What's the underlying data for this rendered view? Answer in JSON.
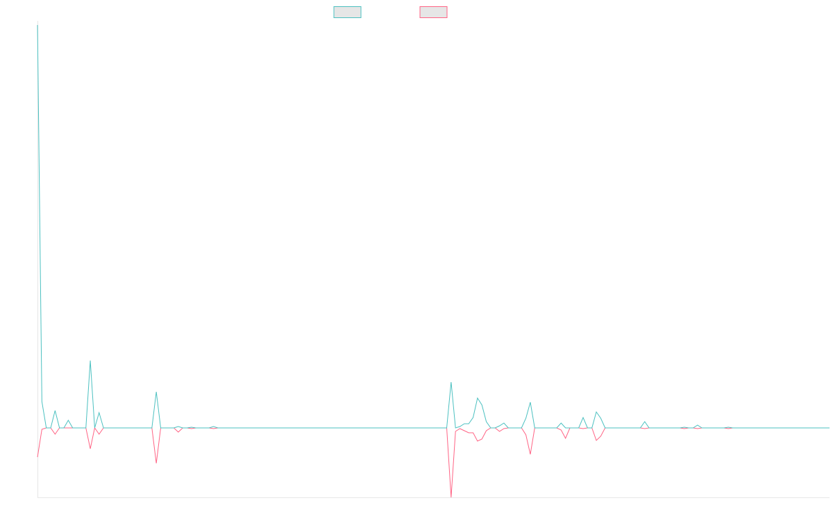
{
  "chart_data": {
    "type": "line",
    "title": "",
    "xlabel": "",
    "ylabel": "",
    "legend_position": "top-center",
    "grid": false,
    "ylim": [
      -100,
      580
    ],
    "x_count": 181,
    "series": [
      {
        "color": "#4bc0c0",
        "points": [
          [
            0,
            580
          ],
          [
            1,
            38
          ],
          [
            2,
            0
          ],
          [
            3,
            0
          ],
          [
            4,
            25
          ],
          [
            5,
            0
          ],
          [
            6,
            0
          ],
          [
            7,
            11
          ],
          [
            8,
            0
          ],
          [
            9,
            0
          ],
          [
            10,
            0
          ],
          [
            11,
            0
          ],
          [
            12,
            97
          ],
          [
            13,
            0
          ],
          [
            14,
            22
          ],
          [
            15,
            0
          ],
          [
            16,
            0
          ],
          [
            17,
            0
          ],
          [
            18,
            0
          ],
          [
            19,
            0
          ],
          [
            20,
            0
          ],
          [
            21,
            0
          ],
          [
            22,
            0
          ],
          [
            23,
            0
          ],
          [
            24,
            0
          ],
          [
            25,
            0
          ],
          [
            26,
            0
          ],
          [
            27,
            52
          ],
          [
            28,
            0
          ],
          [
            29,
            0
          ],
          [
            30,
            0
          ],
          [
            31,
            0
          ],
          [
            32,
            2
          ],
          [
            33,
            0
          ],
          [
            34,
            0
          ],
          [
            35,
            1
          ],
          [
            36,
            0
          ],
          [
            37,
            0
          ],
          [
            38,
            0
          ],
          [
            39,
            0
          ],
          [
            40,
            2
          ],
          [
            41,
            0
          ],
          [
            93,
            0
          ],
          [
            94,
            66
          ],
          [
            95,
            0
          ],
          [
            96,
            2
          ],
          [
            97,
            6
          ],
          [
            98,
            6
          ],
          [
            99,
            15
          ],
          [
            100,
            43
          ],
          [
            101,
            33
          ],
          [
            102,
            9
          ],
          [
            103,
            0
          ],
          [
            104,
            0
          ],
          [
            105,
            3
          ],
          [
            106,
            7
          ],
          [
            107,
            0
          ],
          [
            108,
            0
          ],
          [
            109,
            0
          ],
          [
            110,
            0
          ],
          [
            111,
            14
          ],
          [
            112,
            37
          ],
          [
            113,
            0
          ],
          [
            114,
            0
          ],
          [
            115,
            0
          ],
          [
            116,
            0
          ],
          [
            117,
            0
          ],
          [
            118,
            0
          ],
          [
            119,
            7
          ],
          [
            120,
            0
          ],
          [
            121,
            0
          ],
          [
            122,
            0
          ],
          [
            123,
            0
          ],
          [
            124,
            15
          ],
          [
            125,
            0
          ],
          [
            126,
            0
          ],
          [
            127,
            23
          ],
          [
            128,
            14
          ],
          [
            129,
            0
          ],
          [
            130,
            0
          ],
          [
            131,
            0
          ],
          [
            132,
            0
          ],
          [
            133,
            0
          ],
          [
            134,
            0
          ],
          [
            135,
            0
          ],
          [
            136,
            0
          ],
          [
            137,
            0
          ],
          [
            138,
            9
          ],
          [
            139,
            0
          ],
          [
            140,
            0
          ],
          [
            141,
            0
          ],
          [
            142,
            0
          ],
          [
            143,
            0
          ],
          [
            144,
            0
          ],
          [
            145,
            0
          ],
          [
            146,
            0
          ],
          [
            147,
            1
          ],
          [
            148,
            0
          ],
          [
            149,
            0
          ],
          [
            150,
            4
          ],
          [
            151,
            0
          ],
          [
            152,
            0
          ],
          [
            153,
            0
          ],
          [
            154,
            0
          ],
          [
            155,
            0
          ],
          [
            156,
            0
          ],
          [
            157,
            1
          ],
          [
            158,
            0
          ],
          [
            180,
            0
          ]
        ]
      },
      {
        "color": "#ff6384",
        "points": [
          [
            0,
            -42
          ],
          [
            1,
            -2
          ],
          [
            2,
            0
          ],
          [
            3,
            0
          ],
          [
            4,
            -9
          ],
          [
            5,
            0
          ],
          [
            6,
            0
          ],
          [
            7,
            0
          ],
          [
            8,
            0
          ],
          [
            9,
            0
          ],
          [
            10,
            0
          ],
          [
            11,
            0
          ],
          [
            12,
            -30
          ],
          [
            13,
            0
          ],
          [
            14,
            -9
          ],
          [
            15,
            0
          ],
          [
            16,
            0
          ],
          [
            17,
            0
          ],
          [
            18,
            0
          ],
          [
            19,
            0
          ],
          [
            20,
            0
          ],
          [
            21,
            0
          ],
          [
            22,
            0
          ],
          [
            23,
            0
          ],
          [
            24,
            0
          ],
          [
            25,
            0
          ],
          [
            26,
            0
          ],
          [
            27,
            -51
          ],
          [
            28,
            0
          ],
          [
            29,
            0
          ],
          [
            30,
            0
          ],
          [
            31,
            0
          ],
          [
            32,
            -6
          ],
          [
            33,
            0
          ],
          [
            34,
            0
          ],
          [
            35,
            -1
          ],
          [
            36,
            0
          ],
          [
            37,
            0
          ],
          [
            38,
            0
          ],
          [
            39,
            0
          ],
          [
            40,
            -1
          ],
          [
            41,
            0
          ],
          [
            93,
            0
          ],
          [
            94,
            -100
          ],
          [
            95,
            -5
          ],
          [
            96,
            -1
          ],
          [
            97,
            -4
          ],
          [
            98,
            -7
          ],
          [
            99,
            -7
          ],
          [
            100,
            -19
          ],
          [
            101,
            -16
          ],
          [
            102,
            -4
          ],
          [
            103,
            0
          ],
          [
            104,
            0
          ],
          [
            105,
            -5
          ],
          [
            106,
            -1
          ],
          [
            107,
            0
          ],
          [
            108,
            0
          ],
          [
            109,
            0
          ],
          [
            110,
            0
          ],
          [
            111,
            -10
          ],
          [
            112,
            -38
          ],
          [
            113,
            0
          ],
          [
            114,
            0
          ],
          [
            115,
            0
          ],
          [
            116,
            0
          ],
          [
            117,
            0
          ],
          [
            118,
            0
          ],
          [
            119,
            -3
          ],
          [
            120,
            -15
          ],
          [
            121,
            0
          ],
          [
            122,
            0
          ],
          [
            123,
            0
          ],
          [
            124,
            -1
          ],
          [
            125,
            0
          ],
          [
            126,
            0
          ],
          [
            127,
            -18
          ],
          [
            128,
            -12
          ],
          [
            129,
            0
          ],
          [
            130,
            0
          ],
          [
            131,
            0
          ],
          [
            132,
            0
          ],
          [
            133,
            0
          ],
          [
            134,
            0
          ],
          [
            135,
            0
          ],
          [
            136,
            0
          ],
          [
            137,
            0
          ],
          [
            138,
            -1
          ],
          [
            139,
            0
          ],
          [
            140,
            0
          ],
          [
            141,
            0
          ],
          [
            142,
            0
          ],
          [
            143,
            0
          ],
          [
            144,
            0
          ],
          [
            145,
            0
          ],
          [
            146,
            0
          ],
          [
            147,
            -1
          ],
          [
            148,
            0
          ],
          [
            149,
            0
          ],
          [
            150,
            -1
          ],
          [
            151,
            0
          ],
          [
            152,
            0
          ],
          [
            153,
            0
          ],
          [
            154,
            0
          ],
          [
            155,
            0
          ],
          [
            156,
            0
          ],
          [
            157,
            -1
          ],
          [
            158,
            0
          ],
          [
            180,
            0
          ]
        ]
      }
    ]
  }
}
